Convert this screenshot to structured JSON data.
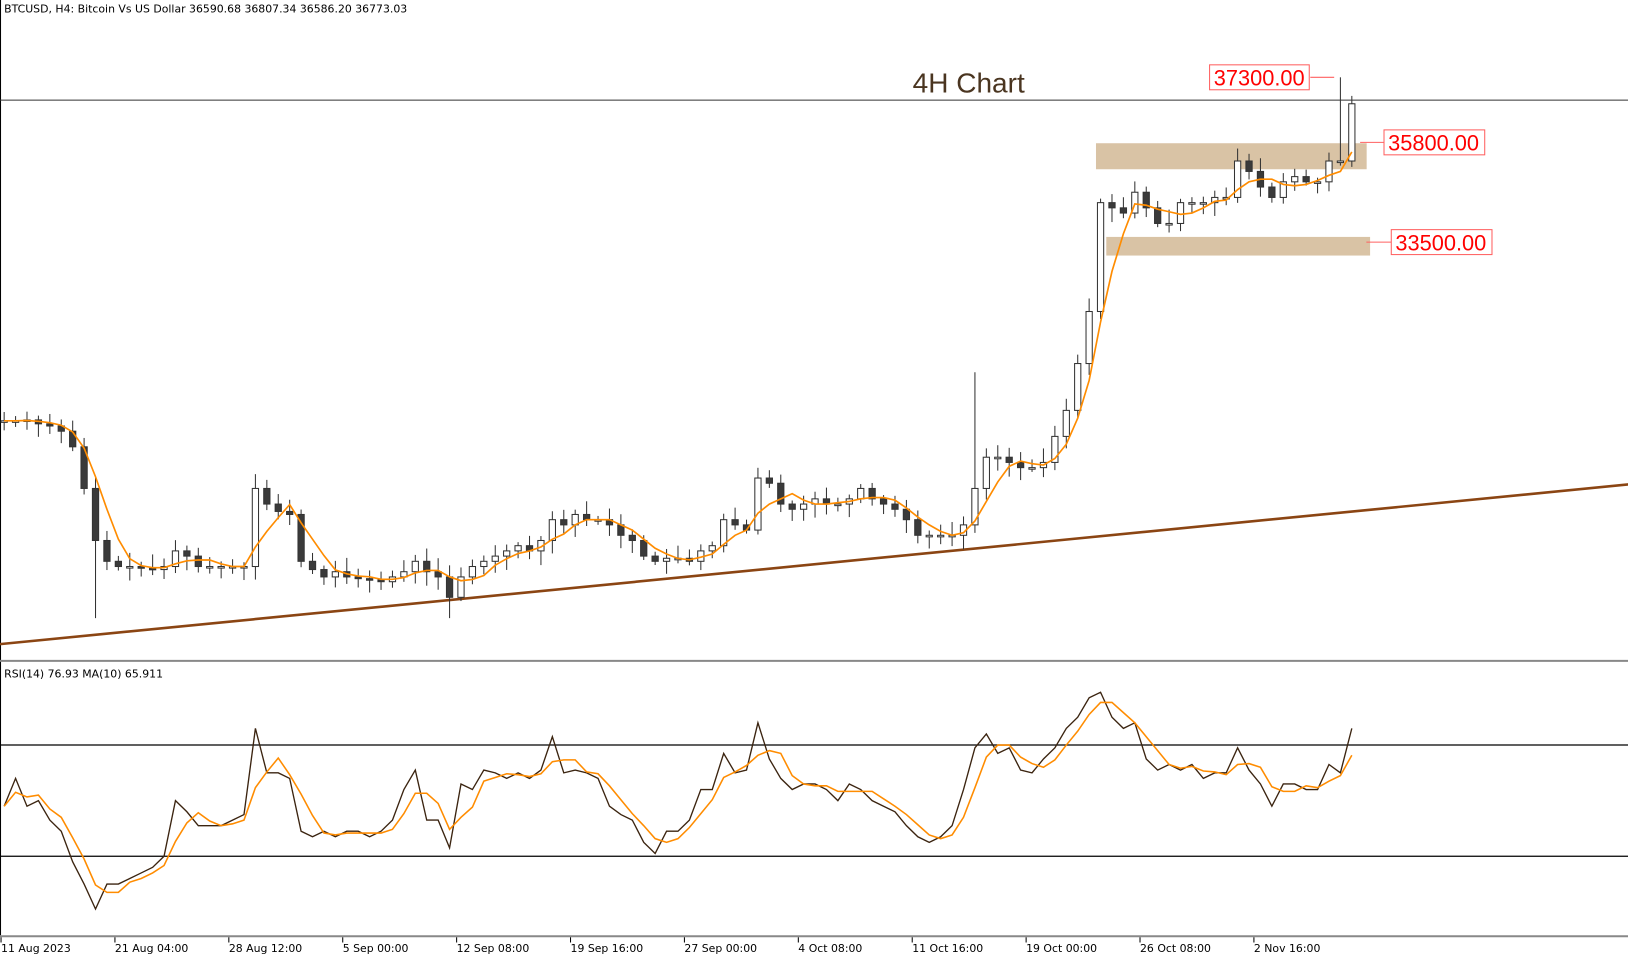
{
  "header": {
    "symbol_info": "BTCUSD, H4:  Bitcoin Vs US Dollar  36590.68 36807.34 36586.20 36773.03"
  },
  "rsi_header": "RSI(14) 76.93 MA(10) 65.911",
  "colors": {
    "ma": "#ff8c00",
    "trendline": "#8b4513",
    "zone": "#d9c3a5",
    "label": "#ff0000",
    "candle": "#333333"
  },
  "chart_data": [
    {
      "type": "candlestick",
      "title": "4H Chart",
      "timeframe": "H4",
      "resolution_note_visible": false,
      "x_tick_labels": [
        "11 Aug 2023",
        "21 Aug 04:00",
        "28 Aug 12:00",
        "5 Sep 00:00",
        "12 Sep 08:00",
        "19 Sep 16:00",
        "27 Sep 00:00",
        "4 Oct 08:00",
        "11 Oct 16:00",
        "19 Oct 00:00",
        "26 Oct 08:00",
        "2 Nov 16:00"
      ],
      "closes": [
        29380,
        29380,
        29400,
        29310,
        29260,
        29140,
        28780,
        27820,
        26620,
        26140,
        26020,
        26020,
        25980,
        25950,
        26020,
        26380,
        26260,
        26020,
        26020,
        26020,
        26020,
        26020,
        27820,
        27460,
        27290,
        27220,
        26140,
        25950,
        25780,
        25900,
        25780,
        25740,
        25710,
        25670,
        25780,
        25900,
        26140,
        25900,
        25780,
        25310,
        25780,
        26020,
        26140,
        26260,
        26380,
        26500,
        26380,
        26620,
        27100,
        26980,
        27220,
        27100,
        27100,
        26980,
        26740,
        26620,
        26260,
        26140,
        26210,
        26210,
        26140,
        26380,
        26500,
        27100,
        26980,
        26860,
        28060,
        27940,
        27460,
        27340,
        27460,
        27580,
        27460,
        27460,
        27580,
        27820,
        27580,
        27460,
        27340,
        27100,
        26740,
        26740,
        26740,
        26740,
        26980,
        27820,
        28540,
        28540,
        28420,
        28300,
        28300,
        28420,
        29020,
        29620,
        30700,
        31900,
        34410,
        34290,
        34170,
        34650,
        34290,
        33930,
        33930,
        34410,
        34410,
        34410,
        34530,
        34530,
        35370,
        35130,
        34770,
        34530,
        34890,
        35010,
        34890,
        34890,
        35370,
        35370,
        36690
      ],
      "extremes": [
        {
          "index": 8,
          "low": 24830
        },
        {
          "index": 22,
          "high": 28150
        },
        {
          "index": 39,
          "low": 24830
        },
        {
          "index": 85,
          "high": 30500
        },
        {
          "index": 117,
          "high": 37300
        }
      ],
      "current_price_line": 36773.03,
      "levels": [
        {
          "label": "37300.00",
          "price": 37300
        },
        {
          "label": "35800.00",
          "price": 35800
        },
        {
          "label": "33500.00",
          "price": 33500
        }
      ],
      "zones": [
        {
          "top": 35780,
          "bottom": 35180,
          "from_index": 95.6,
          "to_index": 119.3
        },
        {
          "top": 33620,
          "bottom": 33190,
          "from_index": 96.5,
          "to_index": 119.6
        }
      ],
      "trendline": {
        "start_index": 0,
        "start_price": 24230,
        "end_index": 142.5,
        "end_price": 27920
      },
      "ma_series": "moving average of closes"
    },
    {
      "type": "line",
      "name": "RSI(14)",
      "ylim": [
        0,
        100
      ],
      "levels": [
        70,
        30
      ],
      "values": [
        48,
        58,
        48,
        50,
        43,
        39,
        28,
        20,
        11,
        20,
        20,
        22,
        24,
        26,
        30,
        50,
        46,
        41,
        41,
        41,
        43,
        45,
        76,
        60,
        60,
        58,
        39,
        37,
        39,
        37,
        39,
        39,
        37,
        39,
        43,
        54,
        61,
        43,
        43,
        33,
        56,
        54,
        61,
        60,
        58,
        60,
        58,
        61,
        73,
        60,
        61,
        60,
        58,
        48,
        45,
        43,
        35,
        31,
        39,
        39,
        43,
        54,
        54,
        67,
        60,
        61,
        78,
        65,
        58,
        54,
        56,
        56,
        54,
        50,
        56,
        54,
        50,
        48,
        46,
        41,
        37,
        35,
        37,
        41,
        54,
        69,
        74,
        67,
        69,
        61,
        60,
        65,
        69,
        76,
        80,
        87,
        89,
        80,
        76,
        78,
        65,
        61,
        63,
        61,
        63,
        58,
        60,
        60,
        69,
        61,
        56,
        48,
        56,
        56,
        54,
        54,
        63,
        60,
        76
      ],
      "ma_name": "MA(10)"
    }
  ]
}
